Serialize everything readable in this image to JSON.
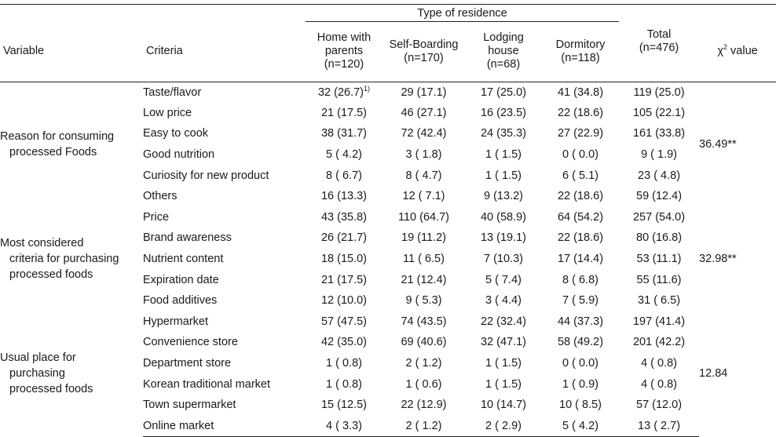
{
  "header": {
    "variable": "Variable",
    "criteria": "Criteria",
    "type_of_residence": "Type of residence",
    "col_home_line1": "Home with",
    "col_home_line2": "parents",
    "col_home_n": "(n=120)",
    "col_self_line1": "Self-Boarding",
    "col_self_n": "(n=170)",
    "col_lodging_line1": "Lodging",
    "col_lodging_line2": "house",
    "col_lodging_n": "(n=68)",
    "col_dorm_line1": "Dormitory",
    "col_dorm_n": "(n=118)",
    "col_total_line1": "Total",
    "col_total_n": "(n=476)",
    "chi_symbol": "χ",
    "chi_sup": "2",
    "chi_label": " value"
  },
  "footnote_marker": "1)",
  "groups": [
    {
      "var_line1": "Reason for consuming",
      "var_line2": "processed Foods",
      "var_line3": "",
      "chi": "36.49**",
      "rows": [
        {
          "criteria": "Taste/flavor",
          "home": "32 (26.7)",
          "self": "29 (17.1)",
          "lodging": "17 (25.0)",
          "dorm": "41 (34.8)",
          "total": "119 (25.0)"
        },
        {
          "criteria": "Low price",
          "home": "21 (17.5)",
          "self": "46 (27.1)",
          "lodging": "16 (23.5)",
          "dorm": "22 (18.6)",
          "total": "105 (22.1)"
        },
        {
          "criteria": "Easy to cook",
          "home": "38 (31.7)",
          "self": "72 (42.4)",
          "lodging": "24 (35.3)",
          "dorm": "27 (22.9)",
          "total": "161 (33.8)"
        },
        {
          "criteria": "Good nutrition",
          "home": "5 ( 4.2)",
          "self": "3 ( 1.8)",
          "lodging": "1 ( 1.5)",
          "dorm": "0 ( 0.0)",
          "total": "9 ( 1.9)"
        },
        {
          "criteria": "Curiosity for new product",
          "home": "8 ( 6.7)",
          "self": "8 ( 4.7)",
          "lodging": "1 ( 1.5)",
          "dorm": "6 ( 5.1)",
          "total": "23 ( 4.8)"
        },
        {
          "criteria": "Others",
          "home": "16 (13.3)",
          "self": "12 ( 7.1)",
          "lodging": "9 (13.2)",
          "dorm": "22 (18.6)",
          "total": "59 (12.4)"
        }
      ]
    },
    {
      "var_line1": "Most considered",
      "var_line2": "criteria for purchasing",
      "var_line3": "processed foods",
      "chi": "32.98**",
      "rows": [
        {
          "criteria": "Price",
          "home": "43 (35.8)",
          "self": "110 (64.7)",
          "lodging": "40 (58.9)",
          "dorm": "64 (54.2)",
          "total": "257 (54.0)"
        },
        {
          "criteria": "Brand awareness",
          "home": "26 (21.7)",
          "self": "19 (11.2)",
          "lodging": "13 (19.1)",
          "dorm": "22 (18.6)",
          "total": "80 (16.8)"
        },
        {
          "criteria": "Nutrient content",
          "home": "18 (15.0)",
          "self": "11 ( 6.5)",
          "lodging": "7 (10.3)",
          "dorm": "17 (14.4)",
          "total": "53 (11.1)"
        },
        {
          "criteria": "Expiration date",
          "home": "21 (17.5)",
          "self": "21 (12.4)",
          "lodging": "5 ( 7.4)",
          "dorm": "8 ( 6.8)",
          "total": "55 (11.6)"
        },
        {
          "criteria": "Food additives",
          "home": "12 (10.0)",
          "self": "9 ( 5.3)",
          "lodging": "3 ( 4.4)",
          "dorm": "7 ( 5.9)",
          "total": "31 ( 6.5)"
        }
      ]
    },
    {
      "var_line1": "Usual place for",
      "var_line2": "purchasing",
      "var_line3": "processed foods",
      "chi": "12.84",
      "rows": [
        {
          "criteria": "Hypermarket",
          "home": "57 (47.5)",
          "self": "74 (43.5)",
          "lodging": "22 (32.4)",
          "dorm": "44 (37.3)",
          "total": "197 (41.4)"
        },
        {
          "criteria": "Convenience store",
          "home": "42 (35.0)",
          "self": "69 (40.6)",
          "lodging": "32 (47.1)",
          "dorm": "58 (49.2)",
          "total": "201 (42.2)"
        },
        {
          "criteria": "Department store",
          "home": "1 ( 0.8)",
          "self": "2 ( 1.2)",
          "lodging": "1 ( 1.5)",
          "dorm": "0 ( 0.0)",
          "total": "4 ( 0.8)"
        },
        {
          "criteria": "Korean traditional market",
          "home": "1 ( 0.8)",
          "self": "1 ( 0.6)",
          "lodging": "1 ( 1.5)",
          "dorm": "1 ( 0.9)",
          "total": "4 ( 0.8)"
        },
        {
          "criteria": "Town supermarket",
          "home": "15 (12.5)",
          "self": "22 (12.9)",
          "lodging": "10 (14.7)",
          "dorm": "10 ( 8.5)",
          "total": "57 (12.0)"
        },
        {
          "criteria": "Online market",
          "home": "4 ( 3.3)",
          "self": "2 ( 1.2)",
          "lodging": "2 ( 2.9)",
          "dorm": "5 ( 4.2)",
          "total": "13 ( 2.7)"
        }
      ]
    }
  ]
}
